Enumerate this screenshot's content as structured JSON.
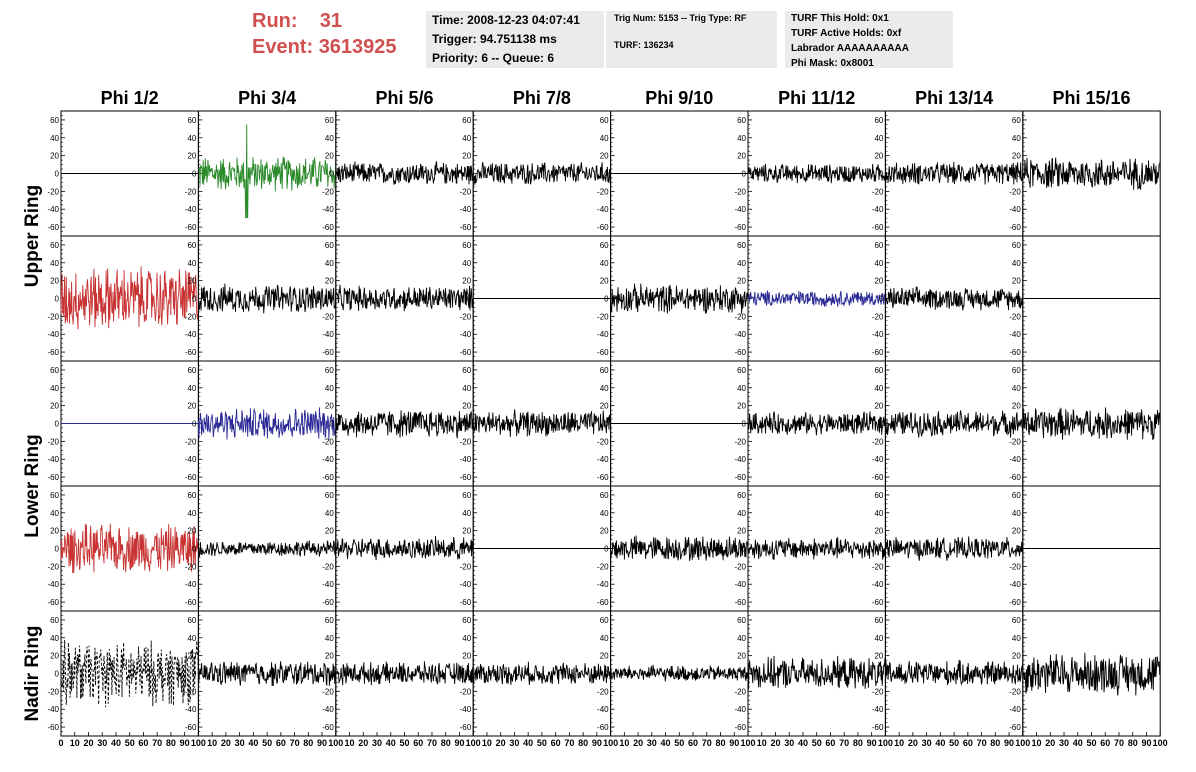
{
  "header": {
    "run_label": "Run:",
    "run_value": "31",
    "event_label": "Event:",
    "event_value": "3613925",
    "time_text": "Time: 2008-12-23 04:07:41",
    "trigger_text": "Trigger: 94.751138 ms",
    "priority_text": "Priority: 6 -- Queue: 6",
    "trig_num_text": "Trig Num: 5153 -- Trig Type: RF",
    "turf_text": "TURF: 136234",
    "turf_hold_text": "TURF This Hold: 0x1",
    "turf_active_text": "TURF Active Holds: 0xf",
    "labrador_text": "Labrador AAAAAAAAAA",
    "phi_mask_text": "Phi Mask: 0x8001"
  },
  "colors": {
    "run_text": "#d05050",
    "info_bg": "#ebebeb",
    "black": "#000000",
    "green": "#2a8a2a",
    "red": "#c83232",
    "blue": "#2a2a96"
  },
  "chart_data": {
    "type": "line",
    "column_titles": [
      "Phi 1/2",
      "Phi 3/4",
      "Phi 5/6",
      "Phi 7/8",
      "Phi 9/10",
      "Phi 11/12",
      "Phi 13/14",
      "Phi 15/16"
    ],
    "ring_labels": [
      {
        "text": "Upper Ring"
      },
      {
        "text": "Lower Ring"
      },
      {
        "text": "Nadir Ring"
      }
    ],
    "xlim": [
      0,
      100
    ],
    "ylim": [
      -70,
      70
    ],
    "yticks": [
      -60,
      -40,
      -20,
      0,
      20,
      40,
      60
    ],
    "x_tick_strip": "0 10 20 30 40 50 60 70 80 90 100",
    "x_tick_labels_final": [
      "0",
      "10",
      "20",
      "30",
      "40",
      "50",
      "60",
      "70",
      "80",
      "90",
      "100"
    ],
    "x_tick_labels_other": [
      "10",
      "20",
      "30",
      "40",
      "50",
      "60",
      "70",
      "80",
      "90",
      "100"
    ],
    "panels": [
      [
        {
          "amp": 0,
          "color": "#000000"
        },
        {
          "amp": 22,
          "color": "#2a8a2a",
          "peak": 55
        },
        {
          "amp": 14,
          "color": "#000000"
        },
        {
          "amp": 14,
          "color": "#000000"
        },
        {
          "amp": 0,
          "color": "#000000"
        },
        {
          "amp": 12,
          "color": "#000000"
        },
        {
          "amp": 14,
          "color": "#000000"
        },
        {
          "amp": 20,
          "color": "#000000"
        }
      ],
      [
        {
          "amp": 40,
          "color": "#c83232"
        },
        {
          "amp": 18,
          "color": "#000000"
        },
        {
          "amp": 16,
          "color": "#000000"
        },
        {
          "amp": 0,
          "color": "#000000"
        },
        {
          "amp": 18,
          "color": "#000000"
        },
        {
          "amp": 10,
          "color": "#2a2a96"
        },
        {
          "amp": 14,
          "color": "#000000"
        },
        {
          "amp": 0,
          "color": "#000000"
        }
      ],
      [
        {
          "amp": 0,
          "color": "#2a2a96"
        },
        {
          "amp": 20,
          "color": "#2a2a96"
        },
        {
          "amp": 18,
          "color": "#000000"
        },
        {
          "amp": 16,
          "color": "#000000"
        },
        {
          "amp": 0,
          "color": "#000000"
        },
        {
          "amp": 14,
          "color": "#000000"
        },
        {
          "amp": 16,
          "color": "#000000"
        },
        {
          "amp": 20,
          "color": "#000000"
        }
      ],
      [
        {
          "amp": 30,
          "color": "#c83232"
        },
        {
          "amp": 10,
          "color": "#000000"
        },
        {
          "amp": 14,
          "color": "#000000"
        },
        {
          "amp": 0,
          "color": "#000000"
        },
        {
          "amp": 16,
          "color": "#000000"
        },
        {
          "amp": 14,
          "color": "#000000"
        },
        {
          "amp": 14,
          "color": "#000000"
        },
        {
          "amp": 0,
          "color": "#000000"
        }
      ],
      [
        {
          "amp": 40,
          "color": "#000000",
          "dashed": true
        },
        {
          "amp": 16,
          "color": "#000000"
        },
        {
          "amp": 14,
          "color": "#000000"
        },
        {
          "amp": 14,
          "color": "#000000"
        },
        {
          "amp": 10,
          "color": "#000000"
        },
        {
          "amp": 20,
          "color": "#000000"
        },
        {
          "amp": 16,
          "color": "#000000"
        },
        {
          "amp": 26,
          "color": "#000000"
        }
      ]
    ]
  }
}
